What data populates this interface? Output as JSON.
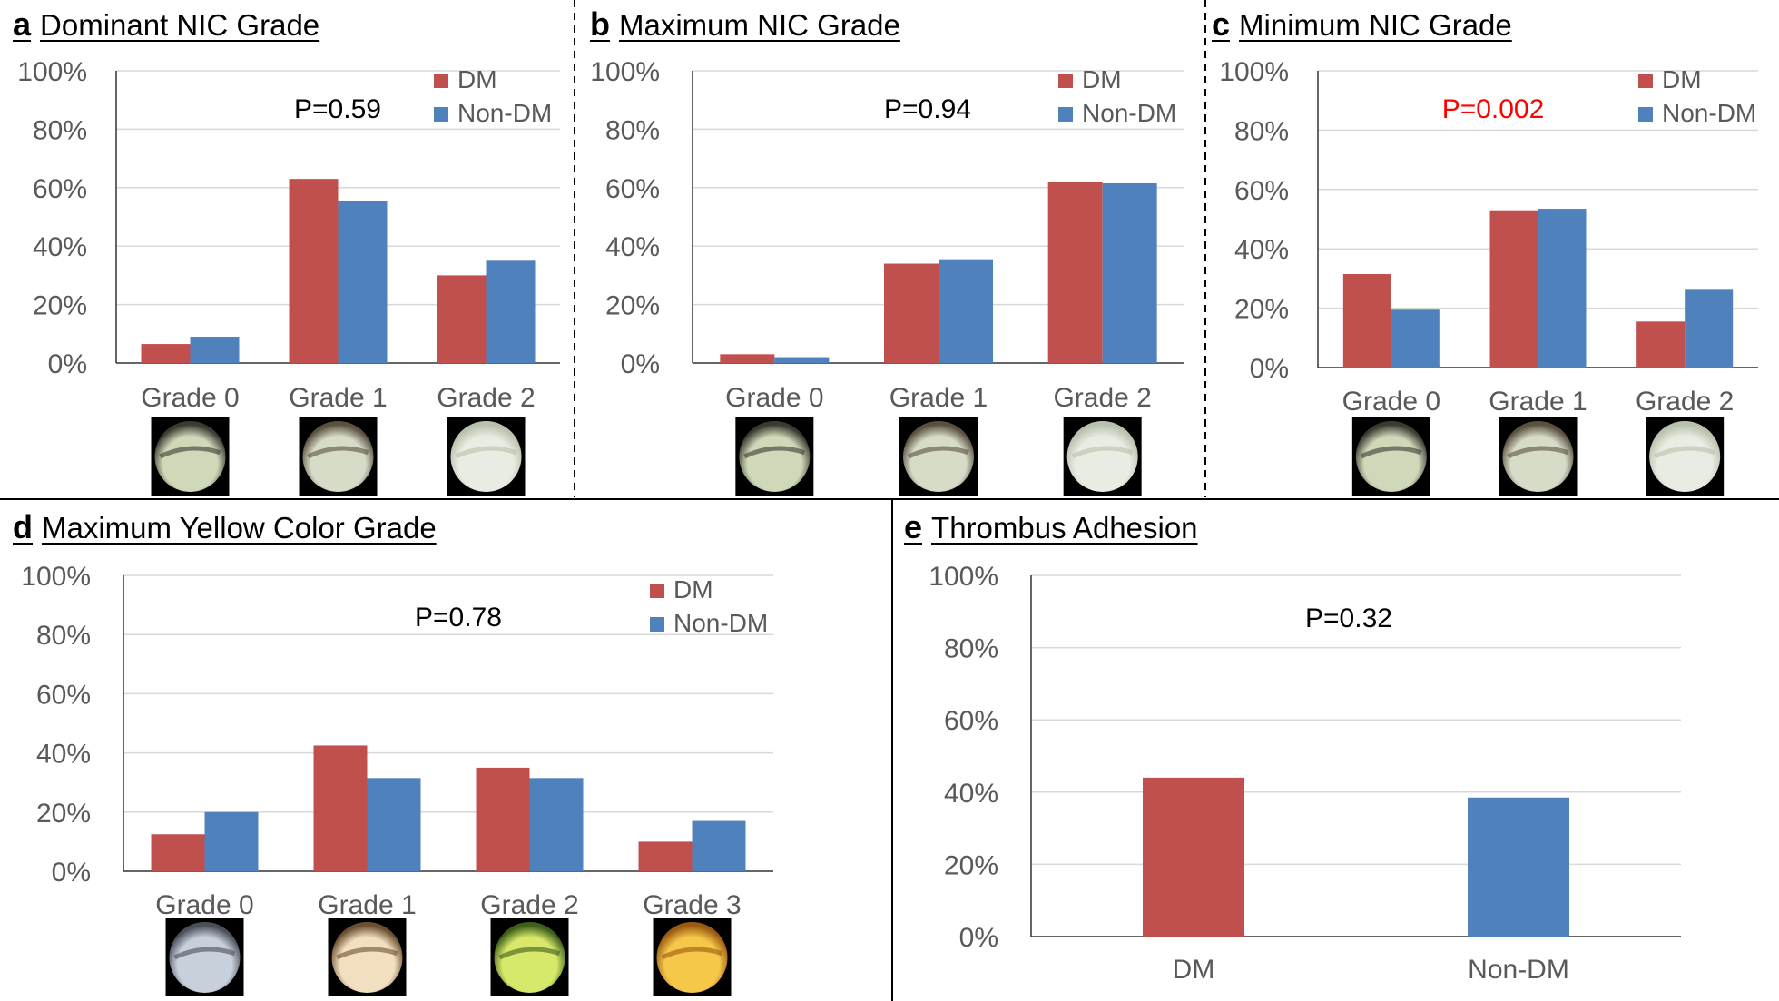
{
  "chart_data": [
    {
      "panel": "a",
      "title": "Dominant NIC Grade",
      "type": "bar",
      "categories": [
        "Grade 0",
        "Grade 1",
        "Grade 2"
      ],
      "series": [
        {
          "name": "DM",
          "values": [
            6.5,
            63,
            30
          ]
        },
        {
          "name": "Non-DM",
          "values": [
            9,
            55.5,
            35
          ]
        }
      ],
      "ylim": [
        0,
        100
      ],
      "yticks": [
        "0%",
        "20%",
        "40%",
        "60%",
        "80%",
        "100%"
      ],
      "annotation": "P=0.59",
      "annotation_color": "#000000",
      "legend": "top-right",
      "grid": true,
      "has_images": true
    },
    {
      "panel": "b",
      "title": "Maximum NIC Grade",
      "type": "bar",
      "categories": [
        "Grade 0",
        "Grade 1",
        "Grade 2"
      ],
      "series": [
        {
          "name": "DM",
          "values": [
            3,
            34,
            62
          ]
        },
        {
          "name": "Non-DM",
          "values": [
            2,
            35.5,
            61.5
          ]
        }
      ],
      "ylim": [
        0,
        100
      ],
      "yticks": [
        "0%",
        "20%",
        "40%",
        "60%",
        "80%",
        "100%"
      ],
      "annotation": "P=0.94",
      "annotation_color": "#000000",
      "legend": "top-right",
      "grid": true,
      "has_images": true
    },
    {
      "panel": "c",
      "title": "Minimum NIC Grade",
      "type": "bar",
      "categories": [
        "Grade 0",
        "Grade 1",
        "Grade 2"
      ],
      "series": [
        {
          "name": "DM",
          "values": [
            31.5,
            53,
            15.5
          ]
        },
        {
          "name": "Non-DM",
          "values": [
            19.5,
            53.5,
            26.5
          ]
        }
      ],
      "ylim": [
        0,
        100
      ],
      "yticks": [
        "0%",
        "20%",
        "40%",
        "60%",
        "80%",
        "100%"
      ],
      "annotation": "P=0.002",
      "annotation_color": "#ff0000",
      "legend": "top-right",
      "grid": true,
      "has_images": true
    },
    {
      "panel": "d",
      "title": "Maximum Yellow Color Grade",
      "type": "bar",
      "categories": [
        "Grade 0",
        "Grade 1",
        "Grade 2",
        "Grade 3"
      ],
      "series": [
        {
          "name": "DM",
          "values": [
            12.5,
            42.5,
            35,
            10
          ]
        },
        {
          "name": "Non-DM",
          "values": [
            20,
            31.5,
            31.5,
            17
          ]
        }
      ],
      "ylim": [
        0,
        100
      ],
      "yticks": [
        "0%",
        "20%",
        "40%",
        "60%",
        "80%",
        "100%"
      ],
      "annotation": "P=0.78",
      "annotation_color": "#000000",
      "legend": "top-right",
      "grid": true,
      "has_images": true
    },
    {
      "panel": "e",
      "title": "Thrombus Adhesion",
      "type": "bar",
      "categories": [
        "DM",
        "Non-DM"
      ],
      "series": [
        {
          "name": "",
          "values": [
            44,
            38.5
          ]
        }
      ],
      "ylim": [
        0,
        100
      ],
      "yticks": [
        "0%",
        "20%",
        "40%",
        "60%",
        "80%",
        "100%"
      ],
      "annotation": "P=0.32",
      "annotation_color": "#000000",
      "legend": "none",
      "grid": true,
      "has_images": false
    }
  ],
  "colors": {
    "dm": "#c0504d",
    "nondm": "#4f81bd",
    "grid": "#d9d9d9",
    "axis": "#333333",
    "tick_text": "#595959"
  }
}
